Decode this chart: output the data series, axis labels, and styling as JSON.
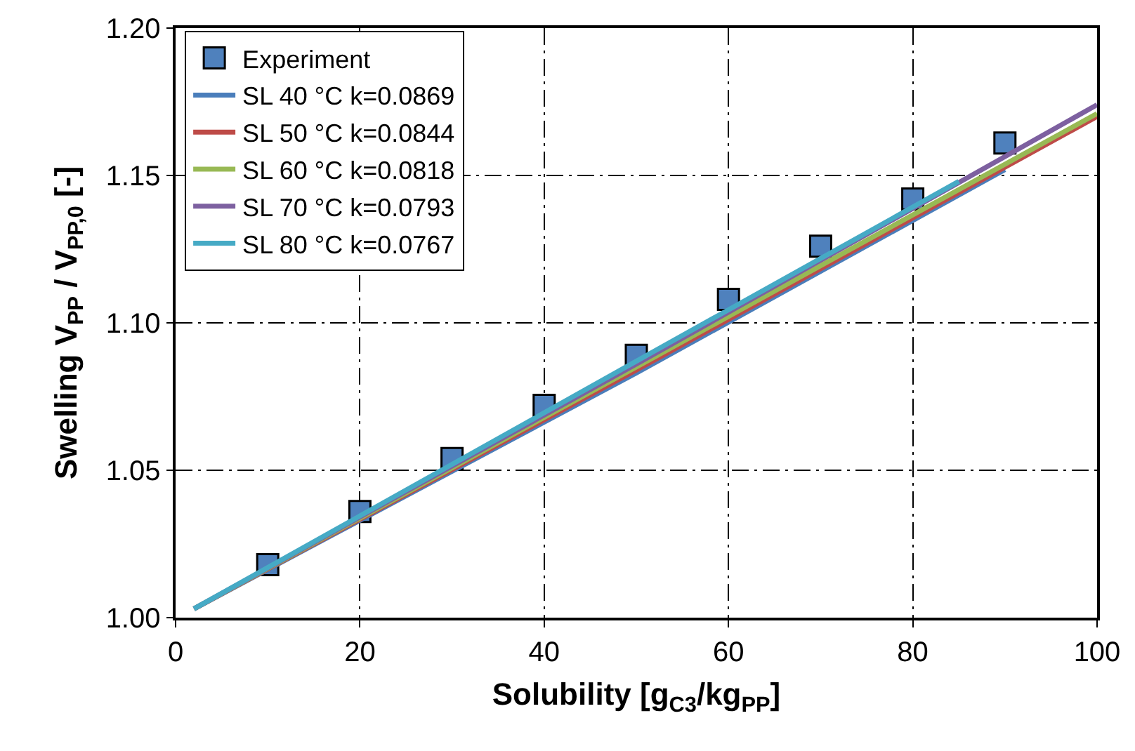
{
  "chart_data": {
    "type": "line",
    "xlabel": "Solubility [g$_{C3}$/kg$_{PP}$]",
    "ylabel": "Swelling V$_{PP}$ / V$_{PP,0}$ [-]",
    "xlim": [
      0,
      100
    ],
    "xticks": [
      0,
      20,
      40,
      60,
      80,
      100
    ],
    "ylim": [
      1.0,
      1.2
    ],
    "yticks": [
      {
        "value": 1.0,
        "label": "1.00"
      },
      {
        "value": 1.05,
        "label": "1.05"
      },
      {
        "value": 1.1,
        "label": "1.10"
      },
      {
        "value": 1.15,
        "label": "1.15"
      },
      {
        "value": 1.2,
        "label": "1.20"
      }
    ],
    "grid": true,
    "legend": "top left",
    "line_style": "solid",
    "series": [
      {
        "name": "Experiment",
        "type": "scatter",
        "marker": "square",
        "color": "#4f81bd",
        "x": [
          10,
          20,
          30,
          40,
          50,
          60,
          70,
          80,
          90
        ],
        "values": [
          1.018,
          1.036,
          1.054,
          1.072,
          1.089,
          1.108,
          1.126,
          1.142,
          1.161
        ]
      },
      {
        "name": "SL 40 °C k=0.0869",
        "color": "#4a7ebb",
        "x": [
          2,
          50,
          90
        ],
        "values": [
          1.003,
          1.083,
          1.152
        ]
      },
      {
        "name": "SL 50 °C k=0.0844",
        "color": "#be4b48",
        "x": [
          2,
          50,
          100
        ],
        "values": [
          1.003,
          1.084,
          1.17
        ]
      },
      {
        "name": "SL 60 °C k=0.0818",
        "color": "#98b954",
        "x": [
          2,
          50,
          100
        ],
        "values": [
          1.003,
          1.085,
          1.171
        ]
      },
      {
        "name": "SL 70 °C k=0.0793",
        "color": "#7d60a0",
        "x": [
          2,
          50,
          100
        ],
        "values": [
          1.003,
          1.086,
          1.174
        ]
      },
      {
        "name": "SL 80 °C k=0.0767",
        "color": "#46aac5",
        "x": [
          2,
          50,
          85
        ],
        "values": [
          1.003,
          1.087,
          1.148
        ]
      }
    ]
  }
}
